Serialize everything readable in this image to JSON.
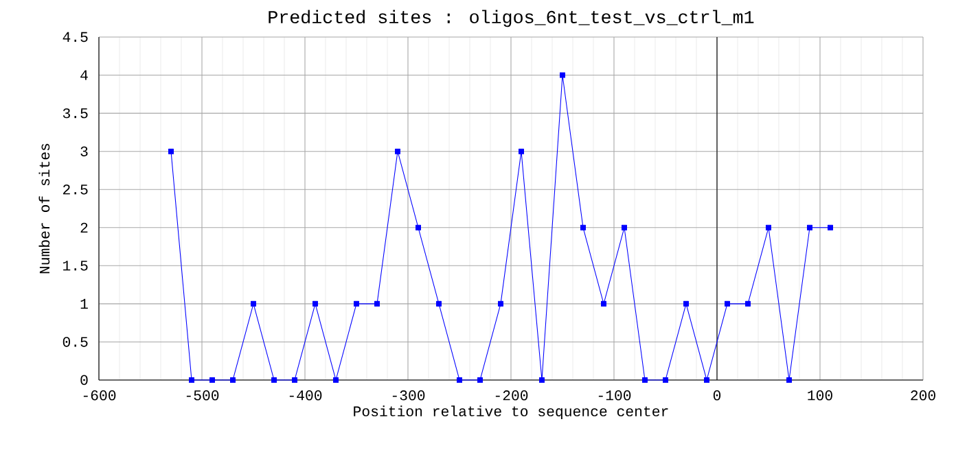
{
  "chart_data": {
    "type": "line",
    "title": "Predicted sites : oligos_6nt_test_vs_ctrl_m1",
    "xlabel": "Position relative to sequence center",
    "ylabel": "Number of sites",
    "x": [
      -530,
      -510,
      -490,
      -470,
      -450,
      -430,
      -410,
      -390,
      -370,
      -350,
      -330,
      -310,
      -290,
      -270,
      -250,
      -230,
      -210,
      -190,
      -170,
      -150,
      -130,
      -110,
      -90,
      -70,
      -50,
      -30,
      -10,
      10,
      30,
      50,
      70,
      90,
      110
    ],
    "series": [
      {
        "color": "#0000ff",
        "values": [
          3,
          0,
          0,
          0,
          1,
          0,
          0,
          1,
          0,
          1,
          1,
          3,
          2,
          1,
          0,
          0,
          1,
          3,
          0,
          4,
          2,
          1,
          2,
          0,
          0,
          1,
          0,
          1,
          1,
          2,
          0,
          2,
          2
        ]
      }
    ],
    "xlim": [
      -600,
      200
    ],
    "xticks": [
      -600,
      -500,
      -400,
      -300,
      -200,
      -100,
      0,
      100,
      200
    ],
    "ylim": [
      0,
      4.5
    ],
    "yticks": [
      0,
      0.5,
      1,
      1.5,
      2,
      2.5,
      3,
      3.5,
      4,
      4.5
    ],
    "ref_lines": [
      {
        "axis": "x",
        "value": 0,
        "color": "#000000"
      }
    ],
    "grid": true,
    "marker": "square",
    "line_style": "solid"
  }
}
